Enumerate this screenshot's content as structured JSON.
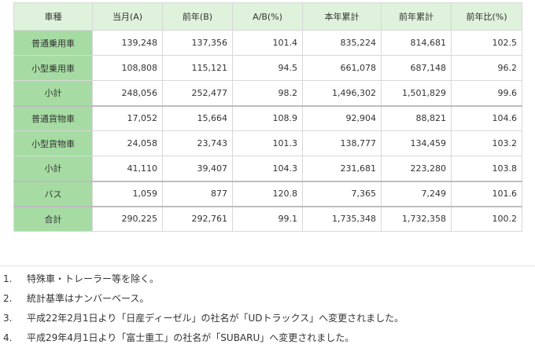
{
  "table": {
    "headers": [
      "車種",
      "当月(A)",
      "前年(B)",
      "A/B(%)",
      "本年累計",
      "前年累計",
      "前年比(%)"
    ],
    "rows": [
      {
        "label": "普通乗用車",
        "cells": [
          "139,248",
          "137,356",
          "101.4",
          "835,224",
          "814,681",
          "102.5"
        ]
      },
      {
        "label": "小型乗用車",
        "cells": [
          "108,808",
          "115,121",
          "94.5",
          "661,078",
          "687,148",
          "96.2"
        ]
      },
      {
        "label": "小計",
        "cells": [
          "248,056",
          "252,477",
          "98.2",
          "1,496,302",
          "1,501,829",
          "99.6"
        ]
      },
      {
        "label": "普通貨物車",
        "cells": [
          "17,052",
          "15,664",
          "108.9",
          "92,904",
          "88,821",
          "104.6"
        ]
      },
      {
        "label": "小型貨物車",
        "cells": [
          "24,058",
          "23,743",
          "101.3",
          "138,777",
          "134,459",
          "103.2"
        ]
      },
      {
        "label": "小計",
        "cells": [
          "41,110",
          "39,407",
          "104.3",
          "231,681",
          "223,280",
          "103.8"
        ]
      },
      {
        "label": "バス",
        "cells": [
          "1,059",
          "877",
          "120.8",
          "7,365",
          "7,249",
          "101.6"
        ]
      },
      {
        "label": "合計",
        "cells": [
          "290,225",
          "292,761",
          "99.1",
          "1,735,348",
          "1,732,358",
          "100.2"
        ]
      }
    ]
  },
  "notes": [
    {
      "num": "1.",
      "text": "特殊車・トレーラー等を除く。"
    },
    {
      "num": "2.",
      "text": "統計基準はナンバーベース。"
    },
    {
      "num": "3.",
      "text": "平成22年2月1日より「日産ディーゼル」の社名が「UDトラックス」へ変更されました。"
    },
    {
      "num": "4.",
      "text": "平成29年4月1日より「富士重工」の社名が「SUBARU」へ変更されました。"
    }
  ],
  "colors": {
    "header_bg": "#dff2dc",
    "row_label_bg": "#a6dca3",
    "border": "#d8d8d8",
    "group_border": "#bdbdbd",
    "text": "#333333"
  }
}
